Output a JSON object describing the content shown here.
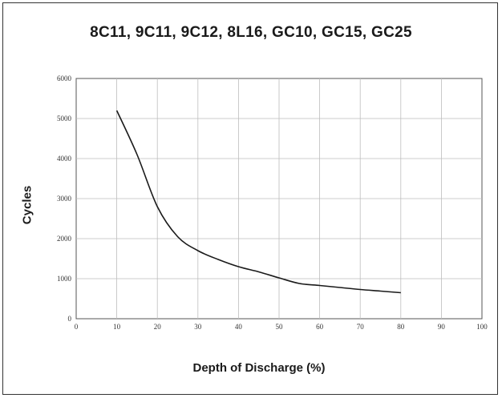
{
  "chart_data": {
    "type": "line",
    "title": "8C11, 9C11, 9C12, 8L16, GC10, GC15, GC25",
    "xlabel": "Depth of Discharge (%)",
    "ylabel": "Cycles",
    "xlim": [
      0,
      100
    ],
    "ylim": [
      0,
      6000
    ],
    "x_ticks": [
      "0",
      "10",
      "20",
      "30",
      "40",
      "50",
      "60",
      "70",
      "80",
      "90",
      "100"
    ],
    "y_ticks": [
      "0",
      "1000",
      "2000",
      "3000",
      "4000",
      "5000",
      "6000"
    ],
    "grid": true,
    "series": [
      {
        "color": "#1a1a1a",
        "x": [
          10,
          15,
          20,
          25,
          30,
          35,
          40,
          45,
          50,
          55,
          60,
          65,
          70,
          75,
          80
        ],
        "y": [
          5200,
          4100,
          2800,
          2050,
          1700,
          1480,
          1300,
          1170,
          1020,
          880,
          830,
          780,
          730,
          690,
          650
        ]
      }
    ]
  }
}
